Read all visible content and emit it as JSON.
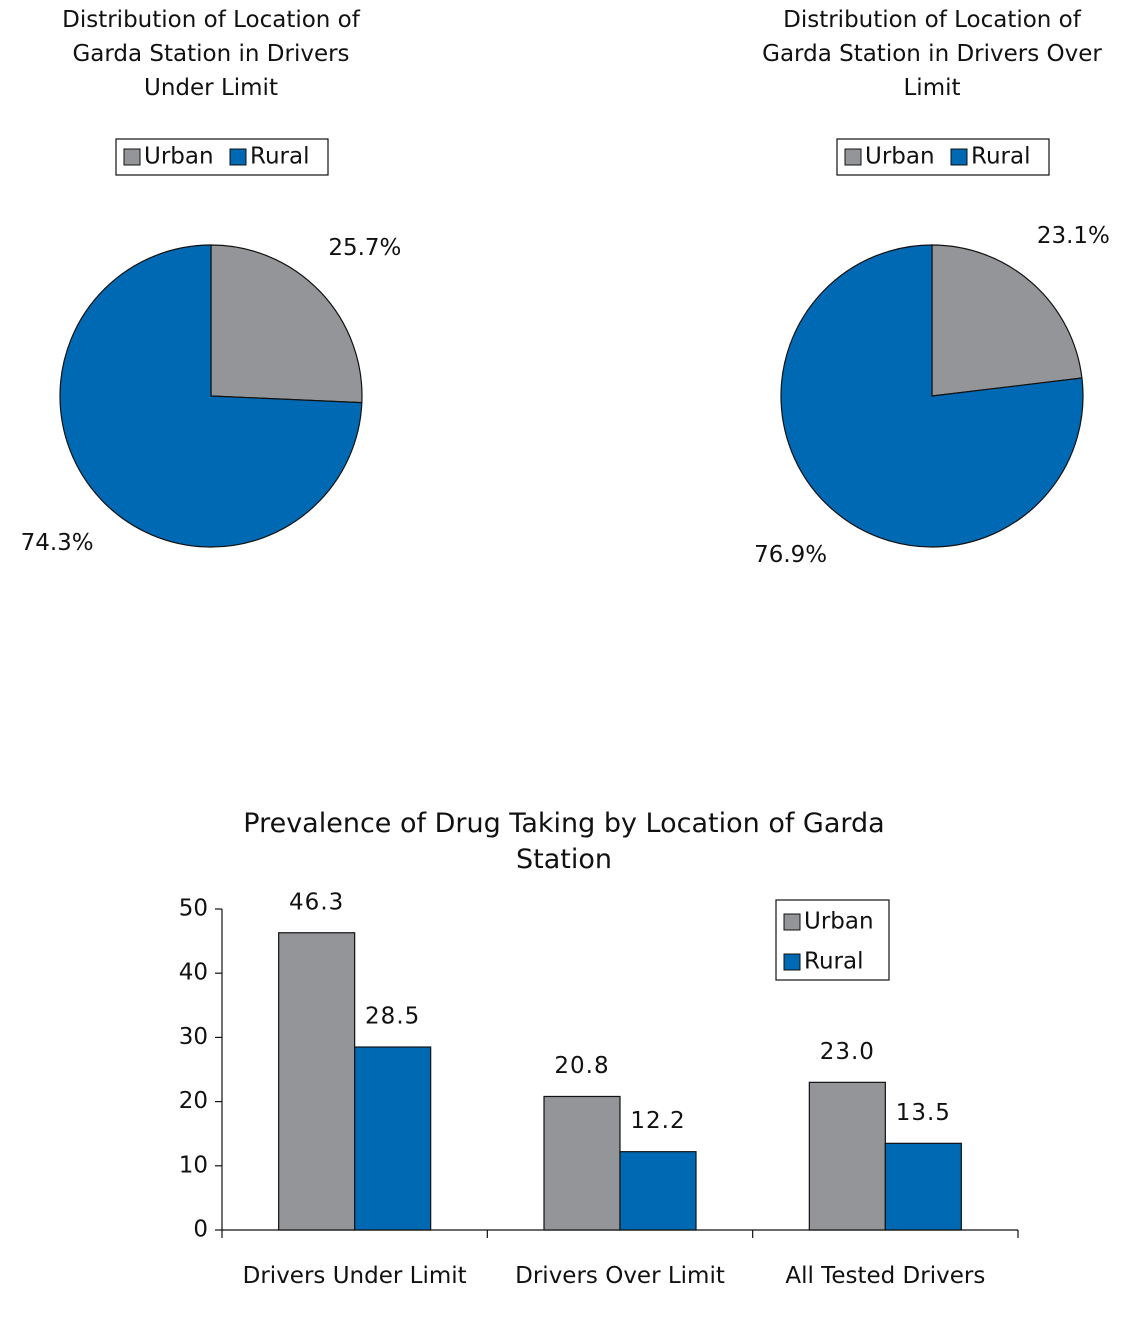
{
  "chart_data": [
    {
      "type": "pie",
      "title": "Distribution of Location of Garda Station in Drivers Under Limit",
      "categories": [
        "Urban",
        "Rural"
      ],
      "values": [
        25.7,
        74.3
      ],
      "value_labels": [
        "25.7%",
        "74.3%"
      ],
      "colors": [
        "#939598",
        "#0069b4"
      ],
      "legend": "top"
    },
    {
      "type": "pie",
      "title": "Distribution of Location of Garda Station in Drivers Over Limit",
      "categories": [
        "Urban",
        "Rural"
      ],
      "values": [
        23.1,
        76.9
      ],
      "value_labels": [
        "23.1%",
        "76.9%"
      ],
      "colors": [
        "#939598",
        "#0069b4"
      ],
      "legend": "top"
    },
    {
      "type": "bar",
      "title": "Prevalence of Drug Taking by Location of Garda Station",
      "categories": [
        "Drivers Under Limit",
        "Drivers Over Limit",
        "All Tested Drivers"
      ],
      "series": [
        {
          "name": "Urban",
          "color": "#939598",
          "values": [
            46.3,
            20.8,
            23.0
          ],
          "value_labels": [
            "46.3",
            "20.8",
            "23.0"
          ]
        },
        {
          "name": "Rural",
          "color": "#0069b4",
          "values": [
            28.5,
            12.2,
            13.5
          ],
          "value_labels": [
            "28.5",
            "12.2",
            "13.5"
          ]
        }
      ],
      "ylim": [
        0,
        50
      ],
      "yticks": [
        0,
        10,
        20,
        30,
        40,
        50
      ],
      "legend": "upper right"
    }
  ]
}
